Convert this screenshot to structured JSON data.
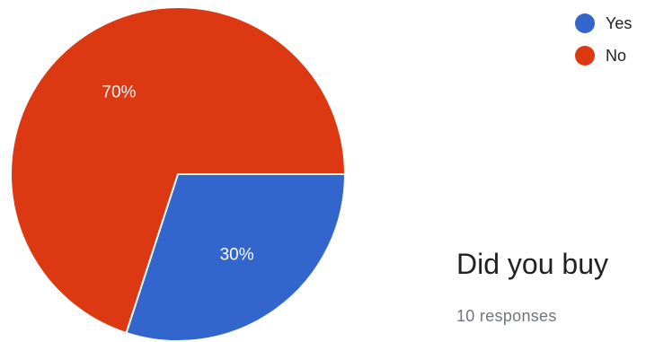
{
  "chart_data": {
    "type": "pie",
    "slices": [
      {
        "label": "Yes",
        "value": 30,
        "percent_label": "30%",
        "color": "#3366cc"
      },
      {
        "label": "No",
        "value": 70,
        "percent_label": "70%",
        "color": "#dc3912"
      }
    ],
    "legend_position": "top-right"
  },
  "form": {
    "question": "Did you buy",
    "responses": "10 responses"
  }
}
